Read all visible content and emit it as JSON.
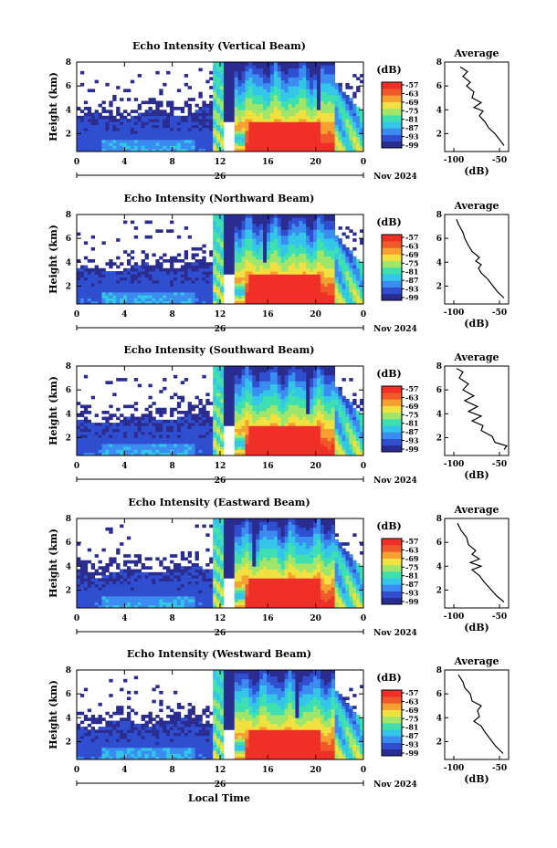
{
  "figure": {
    "xlabel": "Local Time",
    "date_label": "Nov 2024",
    "date_day": "26",
    "unit_label": "(dB)",
    "x_ticks": [
      "0",
      "4",
      "8",
      "12",
      "16",
      "20",
      "0"
    ],
    "y_ticks": [
      "2",
      "4",
      "6",
      "8"
    ],
    "colorbar_ticks": [
      "-57",
      "-63",
      "-69",
      "-75",
      "-81",
      "-87",
      "-93",
      "-99"
    ],
    "avg_x_ticks": [
      "-100",
      "-50"
    ],
    "avg_title": "Average",
    "avg_xlabel": "(dB)",
    "ylabel": "Height (km)",
    "colors": {
      "colormap": [
        "#2a2c8f",
        "#2f4fd0",
        "#3a8cf0",
        "#33c6e8",
        "#3fe0b0",
        "#9fe66a",
        "#f0e040",
        "#f5a030",
        "#f05a2a",
        "#f03028"
      ]
    }
  },
  "chart_data": [
    {
      "type": "heatmap",
      "title": "Echo Intensity (Vertical Beam)",
      "xlabel": "Local Time",
      "ylabel": "Height (km)",
      "x_range_hours": [
        0,
        24
      ],
      "y_range_km": [
        0.5,
        8
      ],
      "z_range_db": [
        -99,
        -57
      ],
      "profile": {
        "type": "line",
        "title": "Average",
        "xlabel": "(dB)",
        "xlim": [
          -110,
          -40
        ],
        "ylim": [
          0.5,
          8
        ],
        "points": [
          [
            -45,
            1
          ],
          [
            -50,
            1.5
          ],
          [
            -55,
            2
          ],
          [
            -62,
            2.5
          ],
          [
            -66,
            3
          ],
          [
            -72,
            3.5
          ],
          [
            -68,
            3.9
          ],
          [
            -78,
            4.2
          ],
          [
            -70,
            4.6
          ],
          [
            -80,
            5
          ],
          [
            -78,
            5.5
          ],
          [
            -86,
            6
          ],
          [
            -82,
            6.3
          ],
          [
            -90,
            6.8
          ],
          [
            -85,
            7.2
          ],
          [
            -93,
            7.6
          ]
        ]
      }
    },
    {
      "type": "heatmap",
      "title": "Echo Intensity (Northward Beam)",
      "xlabel": "Local Time",
      "ylabel": "Height (km)",
      "x_range_hours": [
        0,
        24
      ],
      "y_range_km": [
        0.5,
        8
      ],
      "z_range_db": [
        -99,
        -57
      ],
      "profile": {
        "type": "line",
        "title": "Average",
        "xlabel": "(dB)",
        "xlim": [
          -110,
          -40
        ],
        "ylim": [
          0.5,
          8
        ],
        "points": [
          [
            -45,
            1
          ],
          [
            -52,
            1.5
          ],
          [
            -57,
            2
          ],
          [
            -63,
            2.6
          ],
          [
            -70,
            3.1
          ],
          [
            -73,
            3.5
          ],
          [
            -70,
            3.8
          ],
          [
            -76,
            4.1
          ],
          [
            -72,
            4.4
          ],
          [
            -80,
            4.9
          ],
          [
            -84,
            5.4
          ],
          [
            -88,
            6
          ],
          [
            -90,
            6.5
          ],
          [
            -95,
            7.2
          ],
          [
            -97,
            7.6
          ]
        ]
      }
    },
    {
      "type": "heatmap",
      "title": "Echo Intensity (Southward Beam)",
      "xlabel": "Local Time",
      "ylabel": "Height (km)",
      "x_range_hours": [
        0,
        24
      ],
      "y_range_km": [
        0.5,
        8
      ],
      "z_range_db": [
        -99,
        -57
      ],
      "profile": {
        "type": "line",
        "title": "Average",
        "xlabel": "(dB)",
        "xlim": [
          -110,
          -40
        ],
        "ylim": [
          0.5,
          8
        ],
        "points": [
          [
            -45,
            1
          ],
          [
            -42,
            1.3
          ],
          [
            -55,
            1.6
          ],
          [
            -58,
            2.1
          ],
          [
            -70,
            2.6
          ],
          [
            -68,
            3
          ],
          [
            -80,
            3.4
          ],
          [
            -70,
            3.8
          ],
          [
            -84,
            4.2
          ],
          [
            -74,
            4.6
          ],
          [
            -88,
            5.1
          ],
          [
            -78,
            5.5
          ],
          [
            -90,
            6
          ],
          [
            -84,
            6.5
          ],
          [
            -94,
            7
          ],
          [
            -90,
            7.5
          ],
          [
            -97,
            7.8
          ]
        ]
      }
    },
    {
      "type": "heatmap",
      "title": "Echo Intensity (Eastward Beam)",
      "xlabel": "Local Time",
      "ylabel": "Height (km)",
      "x_range_hours": [
        0,
        24
      ],
      "y_range_km": [
        0.5,
        8
      ],
      "z_range_db": [
        -99,
        -57
      ],
      "profile": {
        "type": "line",
        "title": "Average",
        "xlabel": "(dB)",
        "xlim": [
          -110,
          -40
        ],
        "ylim": [
          0.5,
          8
        ],
        "points": [
          [
            -45,
            1
          ],
          [
            -53,
            1.5
          ],
          [
            -60,
            2.1
          ],
          [
            -67,
            2.7
          ],
          [
            -72,
            3.2
          ],
          [
            -80,
            3.7
          ],
          [
            -70,
            4
          ],
          [
            -82,
            4.3
          ],
          [
            -72,
            4.6
          ],
          [
            -80,
            5
          ],
          [
            -76,
            5.3
          ],
          [
            -84,
            5.8
          ],
          [
            -86,
            6.4
          ],
          [
            -92,
            7
          ],
          [
            -96,
            7.6
          ]
        ]
      }
    },
    {
      "type": "heatmap",
      "title": "Echo Intensity (Westward Beam)",
      "xlabel": "Local Time",
      "ylabel": "Height (km)",
      "x_range_hours": [
        0,
        24
      ],
      "y_range_km": [
        0.5,
        8
      ],
      "z_range_db": [
        -99,
        -57
      ],
      "profile": {
        "type": "line",
        "title": "Average",
        "xlabel": "(dB)",
        "xlim": [
          -110,
          -40
        ],
        "ylim": [
          0.5,
          8
        ],
        "points": [
          [
            -46,
            1
          ],
          [
            -54,
            1.6
          ],
          [
            -60,
            2.2
          ],
          [
            -66,
            2.8
          ],
          [
            -70,
            3.3
          ],
          [
            -78,
            3.7
          ],
          [
            -72,
            4.1
          ],
          [
            -74,
            4.6
          ],
          [
            -70,
            5
          ],
          [
            -80,
            5.4
          ],
          [
            -82,
            6
          ],
          [
            -88,
            6.5
          ],
          [
            -90,
            7
          ],
          [
            -95,
            7.6
          ]
        ]
      }
    }
  ]
}
